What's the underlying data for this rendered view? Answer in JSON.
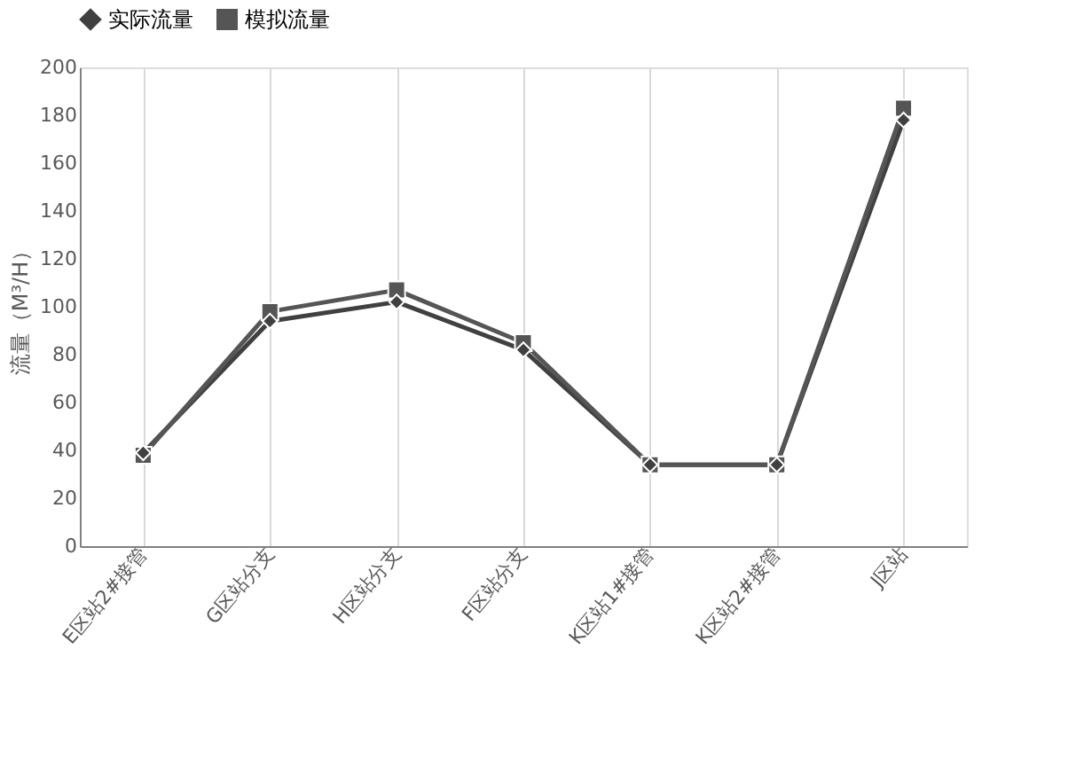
{
  "chart_data": {
    "type": "line",
    "ylabel": "流量（M³/H）",
    "categories": [
      "E区站2#接管",
      "G区站分支",
      "H区站分支",
      "F区站分支",
      "K区站1#接管",
      "K区站2#接管",
      "J区站"
    ],
    "series": [
      {
        "name": "实际流量",
        "color": "#404040",
        "marker": "diamond",
        "values": [
          39,
          94,
          102,
          82,
          34,
          34,
          178
        ]
      },
      {
        "name": "模拟流量",
        "color": "#555555",
        "marker": "square",
        "values": [
          38,
          98,
          107,
          85,
          34,
          34,
          183
        ]
      }
    ],
    "ylim": [
      0,
      200
    ],
    "yticks": [
      0,
      20,
      40,
      60,
      80,
      100,
      120,
      140,
      160,
      180,
      200
    ],
    "grid": "x",
    "legend": "top",
    "line_style": "solid"
  }
}
